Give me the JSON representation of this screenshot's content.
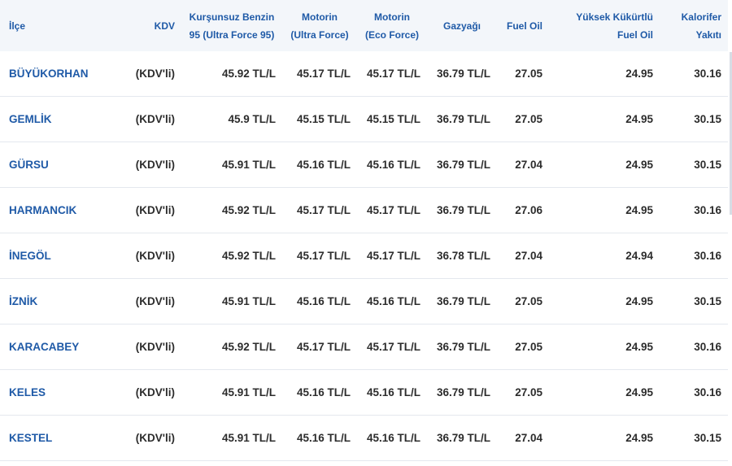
{
  "headers": [
    "İlçe",
    "KDV",
    "Kurşunsuz Benzin 95 (Ultra Force 95)",
    "Motorin (Ultra Force)",
    "Motorin (Eco Force)",
    "Gazyağı",
    "Fuel Oil",
    "Yüksek Kükürtlü Fuel Oil",
    "Kalorifer Yakıtı"
  ],
  "rows": [
    [
      "BÜYÜKORHAN",
      "(KDV'li)",
      "45.92 TL/L",
      "45.17 TL/L",
      "45.17 TL/L",
      "36.79 TL/L",
      "27.05",
      "24.95",
      "30.16"
    ],
    [
      "GEMLİK",
      "(KDV'li)",
      "45.9 TL/L",
      "45.15 TL/L",
      "45.15 TL/L",
      "36.79 TL/L",
      "27.05",
      "24.95",
      "30.15"
    ],
    [
      "GÜRSU",
      "(KDV'li)",
      "45.91 TL/L",
      "45.16 TL/L",
      "45.16 TL/L",
      "36.79 TL/L",
      "27.04",
      "24.95",
      "30.15"
    ],
    [
      "HARMANCIK",
      "(KDV'li)",
      "45.92 TL/L",
      "45.17 TL/L",
      "45.17 TL/L",
      "36.79 TL/L",
      "27.06",
      "24.95",
      "30.16"
    ],
    [
      "İNEGÖL",
      "(KDV'li)",
      "45.92 TL/L",
      "45.17 TL/L",
      "45.17 TL/L",
      "36.78 TL/L",
      "27.04",
      "24.94",
      "30.16"
    ],
    [
      "İZNİK",
      "(KDV'li)",
      "45.91 TL/L",
      "45.16 TL/L",
      "45.16 TL/L",
      "36.79 TL/L",
      "27.05",
      "24.95",
      "30.15"
    ],
    [
      "KARACABEY",
      "(KDV'li)",
      "45.92 TL/L",
      "45.17 TL/L",
      "45.17 TL/L",
      "36.79 TL/L",
      "27.05",
      "24.95",
      "30.16"
    ],
    [
      "KELES",
      "(KDV'li)",
      "45.91 TL/L",
      "45.16 TL/L",
      "45.16 TL/L",
      "36.79 TL/L",
      "27.05",
      "24.95",
      "30.16"
    ],
    [
      "KESTEL",
      "(KDV'li)",
      "45.91 TL/L",
      "45.16 TL/L",
      "45.16 TL/L",
      "36.79 TL/L",
      "27.04",
      "24.95",
      "30.15"
    ]
  ],
  "colors": {
    "accent": "#1f5aa7",
    "header_bg": "#f3f6fa",
    "row_border": "#e4e8ee"
  }
}
